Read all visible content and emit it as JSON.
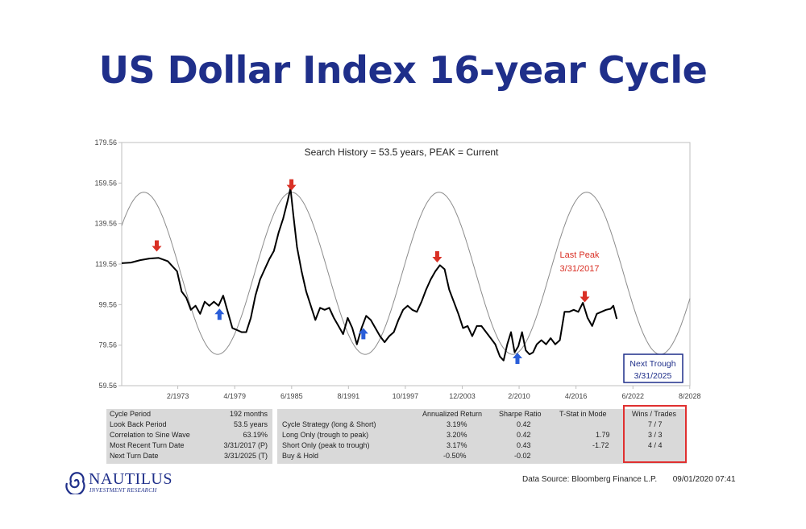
{
  "page": {
    "title": "US Dollar Index 16-year Cycle",
    "data_source": "Data Source: Bloomberg Finance L.P.",
    "timestamp": "09/01/2020 07:41"
  },
  "logo": {
    "name": "NAUTILUS",
    "sub": "INVESTMENT RESEARCH"
  },
  "chart_data": {
    "type": "line",
    "title": "Search History = 53.5 years, PEAK = Current",
    "y_ticks": [
      "179.56",
      "159.56",
      "139.56",
      "119.56",
      "99.56",
      "79.56",
      "59.56"
    ],
    "ylim": [
      59.56,
      179.56
    ],
    "x_ticks": [
      {
        "label": "2/1973",
        "year": 1973.08
      },
      {
        "label": "4/1979",
        "year": 1979.25
      },
      {
        "label": "6/1985",
        "year": 1985.42
      },
      {
        "label": "8/1991",
        "year": 1991.58
      },
      {
        "label": "10/1997",
        "year": 1997.75
      },
      {
        "label": "12/2003",
        "year": 2003.92
      },
      {
        "label": "2/2010",
        "year": 2010.08
      },
      {
        "label": "4/2016",
        "year": 2016.25
      },
      {
        "label": "6/2022",
        "year": 2022.42
      },
      {
        "label": "8/2028",
        "year": 2028.58
      }
    ],
    "xlim": [
      1967.0,
      2028.6
    ],
    "series": [
      {
        "name": "",
        "color": "#000000",
        "points": [
          [
            1967.0,
            120.0
          ],
          [
            1968.0,
            120.3
          ],
          [
            1969.0,
            121.5
          ],
          [
            1970.0,
            122.3
          ],
          [
            1971.0,
            122.6
          ],
          [
            1972.0,
            121.0
          ],
          [
            1973.0,
            116.0
          ],
          [
            1973.5,
            106.0
          ],
          [
            1974.0,
            103.0
          ],
          [
            1974.5,
            97.0
          ],
          [
            1975.0,
            99.0
          ],
          [
            1975.5,
            95.0
          ],
          [
            1976.0,
            101.0
          ],
          [
            1976.5,
            99.0
          ],
          [
            1977.0,
            101.0
          ],
          [
            1977.5,
            99.0
          ],
          [
            1978.0,
            104.0
          ],
          [
            1978.5,
            96.0
          ],
          [
            1979.0,
            88.0
          ],
          [
            1979.5,
            87.0
          ],
          [
            1980.0,
            86.0
          ],
          [
            1980.5,
            86.0
          ],
          [
            1981.0,
            93.0
          ],
          [
            1981.5,
            104.0
          ],
          [
            1982.0,
            112.0
          ],
          [
            1982.5,
            117.0
          ],
          [
            1983.0,
            122.0
          ],
          [
            1983.5,
            126.0
          ],
          [
            1984.0,
            135.0
          ],
          [
            1984.5,
            142.0
          ],
          [
            1985.0,
            151.0
          ],
          [
            1985.3,
            157.0
          ],
          [
            1985.6,
            144.0
          ],
          [
            1986.0,
            128.0
          ],
          [
            1986.5,
            116.0
          ],
          [
            1987.0,
            106.0
          ],
          [
            1987.5,
            99.0
          ],
          [
            1988.0,
            92.0
          ],
          [
            1988.5,
            98.0
          ],
          [
            1989.0,
            97.0
          ],
          [
            1989.5,
            98.0
          ],
          [
            1990.0,
            93.0
          ],
          [
            1990.5,
            89.0
          ],
          [
            1991.0,
            85.0
          ],
          [
            1991.5,
            93.0
          ],
          [
            1992.0,
            88.0
          ],
          [
            1992.5,
            80.0
          ],
          [
            1993.0,
            88.0
          ],
          [
            1993.5,
            94.0
          ],
          [
            1994.0,
            92.0
          ],
          [
            1994.5,
            88.0
          ],
          [
            1995.0,
            84.0
          ],
          [
            1995.5,
            81.0
          ],
          [
            1996.0,
            84.0
          ],
          [
            1996.5,
            86.0
          ],
          [
            1997.0,
            92.0
          ],
          [
            1997.5,
            97.0
          ],
          [
            1998.0,
            99.0
          ],
          [
            1998.5,
            97.0
          ],
          [
            1999.0,
            96.0
          ],
          [
            1999.5,
            101.0
          ],
          [
            2000.0,
            107.0
          ],
          [
            2000.5,
            112.0
          ],
          [
            2001.0,
            116.0
          ],
          [
            2001.5,
            119.0
          ],
          [
            2002.0,
            117.0
          ],
          [
            2002.5,
            107.0
          ],
          [
            2003.0,
            101.0
          ],
          [
            2003.5,
            95.0
          ],
          [
            2004.0,
            88.0
          ],
          [
            2004.5,
            89.0
          ],
          [
            2005.0,
            84.0
          ],
          [
            2005.5,
            89.0
          ],
          [
            2006.0,
            89.0
          ],
          [
            2006.5,
            86.0
          ],
          [
            2007.0,
            83.0
          ],
          [
            2007.5,
            80.0
          ],
          [
            2008.0,
            74.0
          ],
          [
            2008.4,
            72.0
          ],
          [
            2008.8,
            80.0
          ],
          [
            2009.2,
            86.0
          ],
          [
            2009.6,
            76.0
          ],
          [
            2010.0,
            79.0
          ],
          [
            2010.4,
            86.0
          ],
          [
            2010.8,
            77.0
          ],
          [
            2011.2,
            75.0
          ],
          [
            2011.6,
            76.0
          ],
          [
            2012.0,
            80.0
          ],
          [
            2012.5,
            82.0
          ],
          [
            2013.0,
            80.0
          ],
          [
            2013.5,
            83.0
          ],
          [
            2014.0,
            80.0
          ],
          [
            2014.5,
            82.0
          ],
          [
            2015.0,
            96.0
          ],
          [
            2015.5,
            96.0
          ],
          [
            2016.0,
            97.0
          ],
          [
            2016.5,
            96.0
          ],
          [
            2017.0,
            100.5
          ],
          [
            2017.5,
            93.0
          ],
          [
            2018.0,
            89.0
          ],
          [
            2018.5,
            95.0
          ],
          [
            2019.0,
            96.0
          ],
          [
            2019.5,
            97.0
          ],
          [
            2020.0,
            97.5
          ],
          [
            2020.3,
            99.0
          ],
          [
            2020.67,
            92.5
          ]
        ]
      }
    ],
    "sine_wave": {
      "color": "#8c8c8c",
      "period_years": 16,
      "peak_year": 1985.4,
      "center": 115.0,
      "amplitude": 40.0,
      "extends_to": 2028.6
    },
    "annotations": {
      "peak_arrows": [
        1970.8,
        1985.4,
        2001.2,
        2017.2
      ],
      "trough_arrows": [
        1977.6,
        1993.2,
        2009.9
      ],
      "last_peak": {
        "line1": "Last Peak",
        "line2": "3/31/2017"
      },
      "next_trough": {
        "line1": "Next Trough",
        "line2": "3/31/2025"
      }
    }
  },
  "stats": {
    "left": [
      {
        "label": "Cycle Period",
        "value": "192 months"
      },
      {
        "label": "Look Back Period",
        "value": "53.5 years"
      },
      {
        "label": "Correlation to Sine Wave",
        "value": "63.19%"
      },
      {
        "label": "Most Recent Turn Date",
        "value": "3/31/2017 (P)"
      },
      {
        "label": "Next Turn Date",
        "value": "3/31/2025 (T)"
      }
    ],
    "headers": [
      "Annualized Return",
      "Sharpe Ratio",
      "T-Stat in Mode",
      "Wins / Trades"
    ],
    "rows": [
      {
        "label": "Cycle Strategy (long & Short)",
        "ret": "3.19%",
        "sharpe": "0.42",
        "tstat": "",
        "wins": "7 / 7"
      },
      {
        "label": "Long Only (trough to peak)",
        "ret": "3.20%",
        "sharpe": "0.42",
        "tstat": "1.79",
        "wins": "3 / 3"
      },
      {
        "label": "Short Only (peak to trough)",
        "ret": "3.17%",
        "sharpe": "0.43",
        "tstat": "-1.72",
        "wins": "4 / 4"
      },
      {
        "label": "Buy & Hold",
        "ret": "-0.50%",
        "sharpe": "-0.02",
        "tstat": "",
        "wins": ""
      }
    ]
  }
}
